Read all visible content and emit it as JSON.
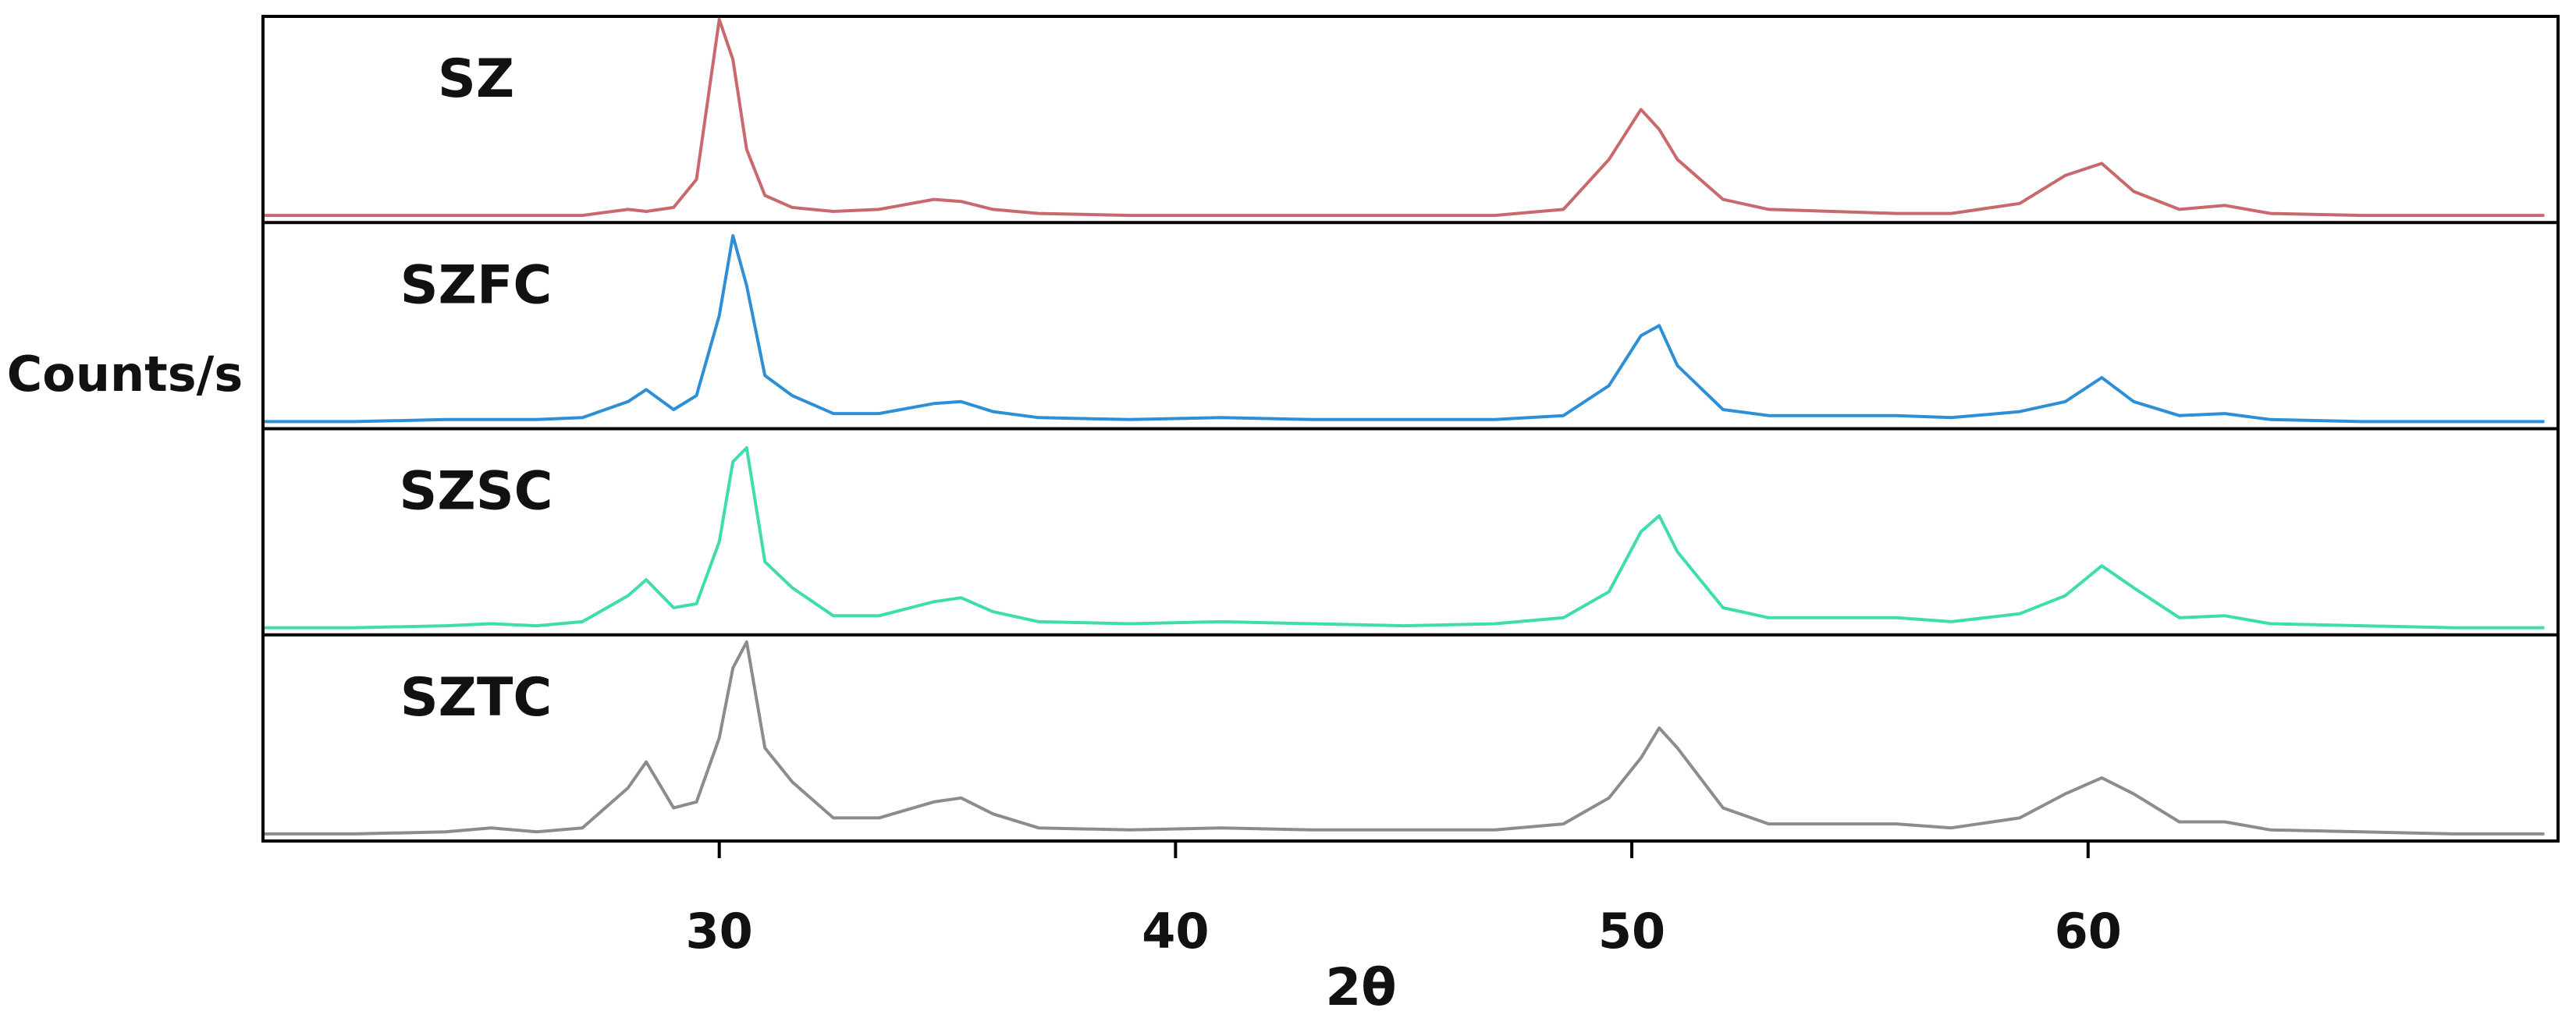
{
  "chart_data": {
    "type": "line",
    "xlabel": "2θ",
    "ylabel": "Counts/s",
    "x": [
      20,
      22,
      24,
      25,
      26,
      27,
      28,
      28.4,
      29,
      29.5,
      30,
      30.3,
      30.6,
      31,
      31.6,
      32.5,
      33.5,
      34.7,
      35.3,
      36,
      37,
      39,
      41,
      43,
      45,
      47,
      48.5,
      49.5,
      50.2,
      50.6,
      51,
      52,
      53,
      55.8,
      57,
      58.5,
      59.5,
      60.3,
      61,
      62,
      63,
      64,
      66,
      68,
      70
    ],
    "xlim": [
      20,
      70.3
    ],
    "xticks": [
      30,
      40,
      50,
      60
    ],
    "ylim": [
      0,
      100
    ],
    "series": [
      {
        "name": "SZ",
        "color": "#c8696d",
        "values": [
          2,
          2,
          2,
          2,
          2,
          2,
          5,
          4,
          6,
          20,
          100,
          80,
          35,
          12,
          6,
          4,
          5,
          10,
          9,
          5,
          3,
          2,
          2,
          2,
          2,
          2,
          5,
          30,
          55,
          45,
          30,
          10,
          5,
          3,
          3,
          8,
          22,
          28,
          14,
          5,
          7,
          3,
          2,
          2,
          2
        ]
      },
      {
        "name": "SZFC",
        "color": "#2e8fd6",
        "values": [
          2,
          2,
          3,
          3,
          3,
          4,
          12,
          18,
          8,
          15,
          55,
          95,
          70,
          25,
          15,
          6,
          6,
          11,
          12,
          7,
          4,
          3,
          4,
          3,
          3,
          3,
          5,
          20,
          45,
          50,
          30,
          8,
          5,
          5,
          4,
          7,
          12,
          24,
          12,
          5,
          6,
          3,
          2,
          2,
          2
        ]
      },
      {
        "name": "SZSC",
        "color": "#3fdcae",
        "values": [
          2,
          2,
          3,
          4,
          3,
          5,
          18,
          26,
          12,
          14,
          45,
          85,
          92,
          35,
          22,
          8,
          8,
          15,
          17,
          10,
          5,
          4,
          5,
          4,
          3,
          4,
          7,
          20,
          50,
          58,
          40,
          12,
          7,
          7,
          5,
          9,
          18,
          33,
          22,
          7,
          8,
          4,
          3,
          2,
          2
        ]
      },
      {
        "name": "SZTC",
        "color": "#8c8c8c",
        "values": [
          2,
          2,
          3,
          5,
          3,
          5,
          25,
          38,
          15,
          18,
          50,
          85,
          98,
          45,
          28,
          10,
          10,
          18,
          20,
          12,
          5,
          4,
          5,
          4,
          4,
          4,
          7,
          20,
          40,
          55,
          45,
          15,
          7,
          7,
          5,
          10,
          22,
          30,
          22,
          8,
          8,
          4,
          3,
          2,
          2
        ]
      }
    ]
  }
}
